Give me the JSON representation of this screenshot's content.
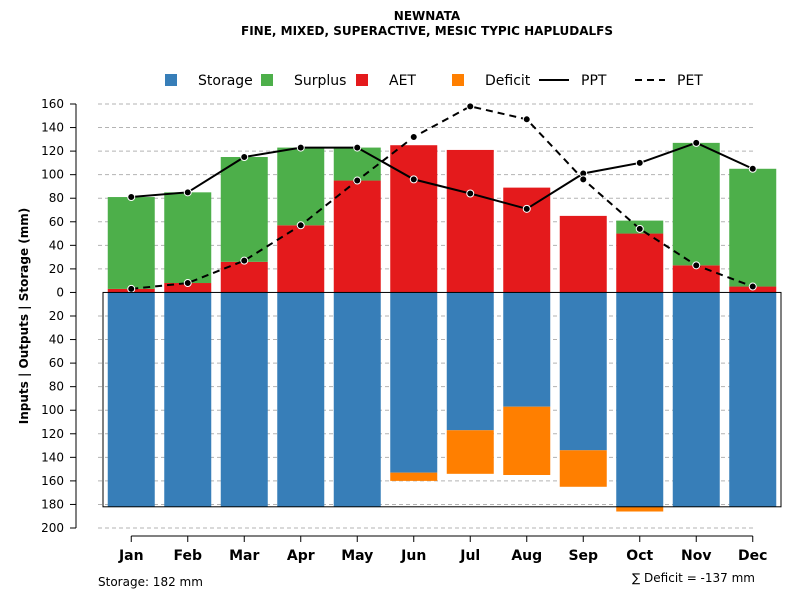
{
  "chart_data": {
    "type": "bar",
    "title": "NEWNATA",
    "subtitle": "FINE, MIXED, SUPERACTIVE, MESIC TYPIC HAPLUDALFS",
    "ylabel": "Inputs | Outputs | Storage    (mm)",
    "ylim": [
      -200,
      160
    ],
    "yticks": [
      160,
      140,
      120,
      100,
      80,
      60,
      40,
      20,
      0,
      -20,
      -40,
      -60,
      -80,
      -100,
      -120,
      -140,
      -160,
      -180,
      -200
    ],
    "ytick_labels": [
      "160",
      "140",
      "120",
      "100",
      "80",
      "60",
      "40",
      "20",
      "0",
      "20",
      "40",
      "60",
      "80",
      "100",
      "120",
      "140",
      "160",
      "180",
      "200"
    ],
    "categories": [
      "Jan",
      "Feb",
      "Mar",
      "Apr",
      "May",
      "Jun",
      "Jul",
      "Aug",
      "Sep",
      "Oct",
      "Nov",
      "Dec"
    ],
    "series": [
      {
        "name": "Storage",
        "color": "#377EB8",
        "values": [
          -182,
          -182,
          -182,
          -182,
          -182,
          -153,
          -117,
          -97,
          -134,
          -182,
          -182,
          -182
        ]
      },
      {
        "name": "Surplus",
        "color": "#4DAF4A",
        "values": [
          78,
          77,
          89,
          66,
          28,
          0,
          0,
          0,
          0,
          11,
          104,
          100
        ]
      },
      {
        "name": "AET",
        "color": "#E41A1C",
        "values": [
          3,
          8,
          26,
          57,
          95,
          125,
          121,
          89,
          65,
          50,
          23,
          5
        ]
      },
      {
        "name": "Deficit",
        "color": "#FF7F00",
        "values": [
          0,
          0,
          0,
          0,
          0,
          -7,
          -37,
          -58,
          -31,
          -4,
          0,
          0
        ]
      },
      {
        "name": "PPT",
        "color": "#000000",
        "line": "solid",
        "values": [
          81,
          85,
          115,
          123,
          123,
          96,
          84,
          71,
          101,
          110,
          127,
          105
        ]
      },
      {
        "name": "PET",
        "color": "#000000",
        "line": "dashed",
        "values": [
          3,
          8,
          27,
          57,
          95,
          132,
          158,
          147,
          96,
          54,
          23,
          5
        ]
      }
    ],
    "legend_position": "top",
    "storage_label": "Storage: 182 mm",
    "deficit_label": "∑ Deficit = -137 mm"
  }
}
